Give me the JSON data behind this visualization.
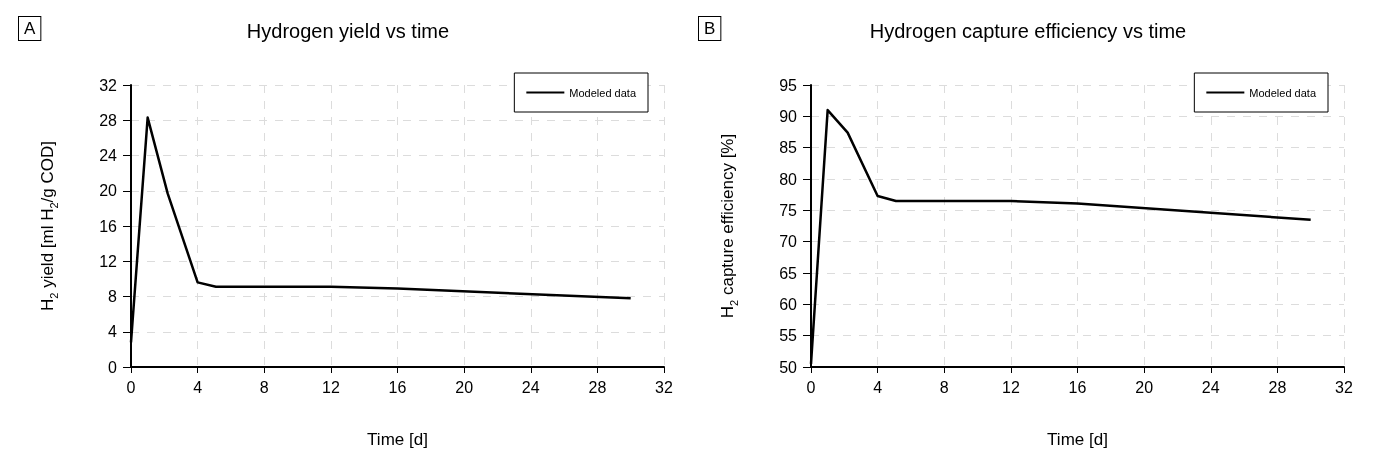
{
  "chart_data": [
    {
      "type": "line",
      "title": "Hydrogen yield vs time",
      "xlabel": "Time [d]",
      "ylabel": "H$_{2}$ yield [ml H$_{2}$/g COD]",
      "annotations": [
        "A"
      ],
      "x": [
        0,
        1,
        2.2,
        4,
        5.1,
        12,
        16,
        30
      ],
      "series": [
        {
          "name": "Modeled data",
          "color": "#000000",
          "values": [
            2.8,
            28.3,
            19.7,
            9.6,
            9.1,
            9.1,
            8.9,
            7.8
          ]
        }
      ],
      "xlim": [
        0,
        32
      ],
      "xticks": [
        0,
        4,
        8,
        12,
        16,
        20,
        24,
        28,
        32
      ],
      "ylim": [
        0,
        32
      ],
      "yticks": [
        0,
        4,
        8,
        12,
        16,
        20,
        24,
        28,
        32
      ],
      "grid": true,
      "legend": "top right",
      "marker": "none",
      "line_style": "solid"
    },
    {
      "type": "line",
      "title": "Hydrogen capture efficiency vs time",
      "xlabel": "Time [d]",
      "ylabel": "H$_{2}$ capture efficiency [%]",
      "annotations": [
        "B"
      ],
      "x": [
        0,
        1,
        2.2,
        4,
        5.1,
        12,
        16,
        30
      ],
      "series": [
        {
          "name": "Modeled data",
          "color": "#000000",
          "values": [
            50.5,
            91,
            87.4,
            77.3,
            76.5,
            76.5,
            76.1,
            73.5
          ]
        }
      ],
      "xlim": [
        0,
        32
      ],
      "xticks": [
        0,
        4,
        8,
        12,
        16,
        20,
        24,
        28,
        32
      ],
      "ylim": [
        50,
        95
      ],
      "yticks": [
        50,
        55,
        60,
        65,
        70,
        75,
        80,
        85,
        90,
        95
      ],
      "grid": true,
      "legend": "top right",
      "marker": "none",
      "line_style": "solid"
    }
  ]
}
